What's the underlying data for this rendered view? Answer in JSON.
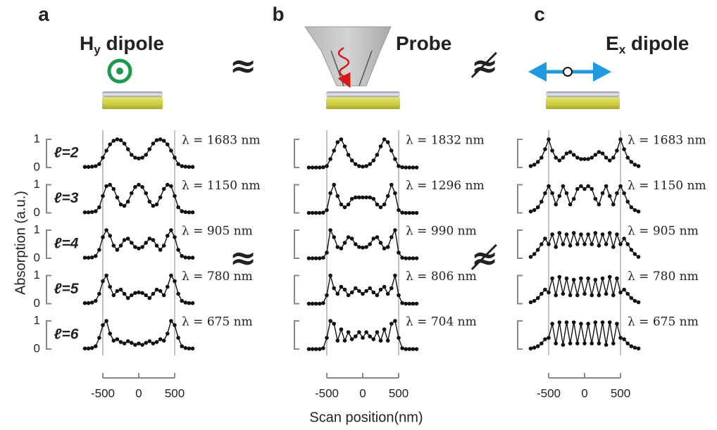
{
  "y_label": "Absorption (a.u.)",
  "x_label": "Scan position(nm)",
  "relations": [
    "≈",
    "≉"
  ],
  "chart_data": [
    {
      "type": "line",
      "panel": "a",
      "title": [
        {
          "text": "H"
        },
        {
          "text": "y",
          "sub": true
        },
        {
          "text": " dipole"
        }
      ],
      "xlim": [
        -850,
        850
      ],
      "xticks": [
        -500,
        0,
        500
      ],
      "ylim": [
        0,
        1
      ],
      "yticks": [
        0,
        1
      ],
      "show_ytick_labels": true,
      "color": "#111111",
      "x": [
        -750,
        -700,
        -650,
        -600,
        -550,
        -500,
        -450,
        -400,
        -350,
        -300,
        -250,
        -200,
        -150,
        -100,
        -50,
        0,
        50,
        100,
        150,
        200,
        250,
        300,
        350,
        400,
        450,
        500,
        550,
        600,
        650,
        700,
        750
      ],
      "series": [
        {
          "name": "ℓ=2",
          "annotation": "λ = 1683 nm",
          "values": [
            0.02,
            0.02,
            0.03,
            0.05,
            0.12,
            0.35,
            0.6,
            0.82,
            0.95,
            1.0,
            0.97,
            0.85,
            0.65,
            0.45,
            0.35,
            0.32,
            0.35,
            0.45,
            0.65,
            0.85,
            0.97,
            1.0,
            0.95,
            0.82,
            0.6,
            0.35,
            0.12,
            0.05,
            0.03,
            0.02,
            0.02
          ]
        },
        {
          "name": "ℓ=3",
          "annotation": "λ = 1150 nm",
          "values": [
            0.02,
            0.02,
            0.03,
            0.06,
            0.2,
            0.6,
            0.95,
            1.0,
            0.85,
            0.55,
            0.3,
            0.25,
            0.4,
            0.7,
            0.92,
            1.0,
            0.92,
            0.7,
            0.4,
            0.25,
            0.3,
            0.55,
            0.85,
            1.0,
            0.95,
            0.6,
            0.2,
            0.06,
            0.03,
            0.02,
            0.02
          ]
        },
        {
          "name": "ℓ=4",
          "annotation": "λ = 905 nm",
          "values": [
            0.02,
            0.02,
            0.03,
            0.08,
            0.3,
            0.75,
            1.0,
            0.8,
            0.45,
            0.3,
            0.45,
            0.65,
            0.7,
            0.55,
            0.4,
            0.35,
            0.4,
            0.55,
            0.7,
            0.65,
            0.45,
            0.3,
            0.45,
            0.8,
            1.0,
            0.75,
            0.3,
            0.08,
            0.03,
            0.02,
            0.02
          ]
        },
        {
          "name": "ℓ=5",
          "annotation": "λ = 780 nm",
          "values": [
            0.02,
            0.02,
            0.04,
            0.1,
            0.35,
            0.8,
            1.0,
            0.6,
            0.3,
            0.45,
            0.5,
            0.35,
            0.2,
            0.3,
            0.38,
            0.4,
            0.38,
            0.3,
            0.2,
            0.35,
            0.5,
            0.45,
            0.3,
            0.6,
            1.0,
            0.8,
            0.35,
            0.1,
            0.04,
            0.02,
            0.02
          ]
        },
        {
          "name": "ℓ=6",
          "annotation": "λ = 675 nm",
          "values": [
            0.02,
            0.02,
            0.04,
            0.1,
            0.4,
            0.85,
            1.0,
            0.55,
            0.3,
            0.35,
            0.25,
            0.2,
            0.28,
            0.22,
            0.15,
            0.2,
            0.15,
            0.22,
            0.28,
            0.2,
            0.25,
            0.35,
            0.3,
            0.55,
            1.0,
            0.85,
            0.4,
            0.1,
            0.04,
            0.02,
            0.02
          ]
        }
      ]
    },
    {
      "type": "line",
      "panel": "b",
      "title": [
        {
          "text": "Probe"
        }
      ],
      "xlim": [
        -850,
        850
      ],
      "xticks": [
        -500,
        0,
        500
      ],
      "ylim": [
        0,
        1
      ],
      "yticks": [
        0,
        1
      ],
      "show_ytick_labels": false,
      "color": "#111111",
      "x": [
        -750,
        -700,
        -650,
        -600,
        -550,
        -500,
        -450,
        -400,
        -350,
        -300,
        -250,
        -200,
        -150,
        -100,
        -50,
        0,
        50,
        100,
        150,
        200,
        250,
        300,
        350,
        400,
        450,
        500,
        550,
        600,
        650,
        700,
        750
      ],
      "series": [
        {
          "annotation": "λ = 1832 nm",
          "values": [
            0,
            0,
            0,
            0,
            0.01,
            0.05,
            0.3,
            0.6,
            0.9,
            1.0,
            0.75,
            0.45,
            0.25,
            0.12,
            0.05,
            0.03,
            0.05,
            0.12,
            0.25,
            0.45,
            0.75,
            1.0,
            0.9,
            0.6,
            0.3,
            0.05,
            0.01,
            0,
            0,
            0,
            0
          ]
        },
        {
          "annotation": "λ = 1296 nm",
          "values": [
            0,
            0,
            0,
            0,
            0.01,
            0.1,
            0.7,
            1.0,
            0.6,
            0.3,
            0.2,
            0.3,
            0.5,
            0.55,
            0.55,
            0.55,
            0.55,
            0.55,
            0.5,
            0.3,
            0.2,
            0.3,
            0.6,
            1.0,
            0.7,
            0.1,
            0.01,
            0,
            0,
            0,
            0
          ]
        },
        {
          "annotation": "λ = 990 nm",
          "values": [
            0,
            0,
            0,
            0,
            0.02,
            0.2,
            1.0,
            0.75,
            0.4,
            0.35,
            0.55,
            0.75,
            0.7,
            0.5,
            0.4,
            0.38,
            0.4,
            0.5,
            0.7,
            0.75,
            0.55,
            0.35,
            0.4,
            0.75,
            1.0,
            0.2,
            0.02,
            0,
            0,
            0,
            0
          ]
        },
        {
          "annotation": "λ = 806 nm",
          "values": [
            0,
            0,
            0,
            0,
            0.02,
            0.3,
            1.0,
            0.55,
            0.35,
            0.6,
            0.5,
            0.3,
            0.4,
            0.55,
            0.45,
            0.35,
            0.45,
            0.55,
            0.4,
            0.3,
            0.5,
            0.6,
            0.35,
            0.55,
            1.0,
            0.3,
            0.02,
            0,
            0,
            0,
            0
          ]
        },
        {
          "annotation": "λ = 704 nm",
          "values": [
            0,
            0,
            0,
            0,
            0.03,
            0.4,
            1.0,
            0.9,
            0.3,
            0.7,
            0.3,
            0.6,
            0.35,
            0.45,
            0.6,
            0.4,
            0.6,
            0.45,
            0.35,
            0.6,
            0.3,
            0.7,
            0.3,
            0.9,
            1.0,
            0.4,
            0.03,
            0,
            0,
            0,
            0
          ]
        }
      ]
    },
    {
      "type": "line",
      "panel": "c",
      "title": [
        {
          "text": "E"
        },
        {
          "text": "x",
          "sub": true
        },
        {
          "text": " dipole"
        }
      ],
      "xlim": [
        -850,
        850
      ],
      "xticks": [
        -500,
        0,
        500
      ],
      "ylim": [
        0,
        1
      ],
      "yticks": [
        0,
        1
      ],
      "show_ytick_labels": false,
      "color": "#111111",
      "x": [
        -750,
        -700,
        -650,
        -600,
        -550,
        -500,
        -450,
        -400,
        -350,
        -300,
        -250,
        -200,
        -150,
        -100,
        -50,
        0,
        50,
        100,
        150,
        200,
        250,
        300,
        350,
        400,
        450,
        500,
        550,
        600,
        650,
        700,
        750
      ],
      "series": [
        {
          "annotation": "λ = 1683 nm",
          "values": [
            0.05,
            0.1,
            0.2,
            0.35,
            0.65,
            1.0,
            0.6,
            0.35,
            0.25,
            0.35,
            0.5,
            0.55,
            0.45,
            0.35,
            0.3,
            0.3,
            0.3,
            0.35,
            0.45,
            0.55,
            0.5,
            0.35,
            0.25,
            0.35,
            0.6,
            1.0,
            0.65,
            0.35,
            0.2,
            0.1,
            0.05
          ]
        },
        {
          "annotation": "λ = 1150 nm",
          "values": [
            0.05,
            0.1,
            0.2,
            0.4,
            0.7,
            0.95,
            0.7,
            0.3,
            0.6,
            0.95,
            0.7,
            0.3,
            0.5,
            0.85,
            0.95,
            0.85,
            0.95,
            0.85,
            0.5,
            0.3,
            0.7,
            0.95,
            0.6,
            0.3,
            0.7,
            0.95,
            0.7,
            0.4,
            0.2,
            0.1,
            0.05
          ]
        },
        {
          "annotation": "λ = 905 nm",
          "values": [
            0.05,
            0.15,
            0.3,
            0.5,
            0.7,
            0.5,
            0.85,
            0.4,
            0.9,
            0.5,
            0.85,
            0.45,
            0.9,
            0.5,
            0.85,
            0.5,
            0.85,
            0.5,
            0.9,
            0.45,
            0.85,
            0.5,
            0.9,
            0.4,
            0.85,
            0.5,
            0.7,
            0.5,
            0.3,
            0.15,
            0.05
          ]
        },
        {
          "annotation": "λ = 780 nm",
          "values": [
            0.05,
            0.1,
            0.2,
            0.35,
            0.5,
            0.4,
            0.9,
            0.3,
            0.95,
            0.35,
            0.9,
            0.3,
            0.85,
            0.3,
            0.9,
            0.35,
            0.9,
            0.3,
            0.85,
            0.3,
            0.9,
            0.35,
            0.95,
            0.3,
            0.9,
            0.4,
            0.5,
            0.35,
            0.2,
            0.1,
            0.05
          ]
        },
        {
          "annotation": "λ = 675 nm",
          "values": [
            0.02,
            0.05,
            0.1,
            0.2,
            0.35,
            0.4,
            0.9,
            0.2,
            0.95,
            0.15,
            0.95,
            0.2,
            0.95,
            0.2,
            0.9,
            0.2,
            0.9,
            0.2,
            0.95,
            0.2,
            0.95,
            0.15,
            0.95,
            0.2,
            0.9,
            0.4,
            0.35,
            0.2,
            0.1,
            0.05,
            0.02
          ]
        }
      ]
    }
  ]
}
